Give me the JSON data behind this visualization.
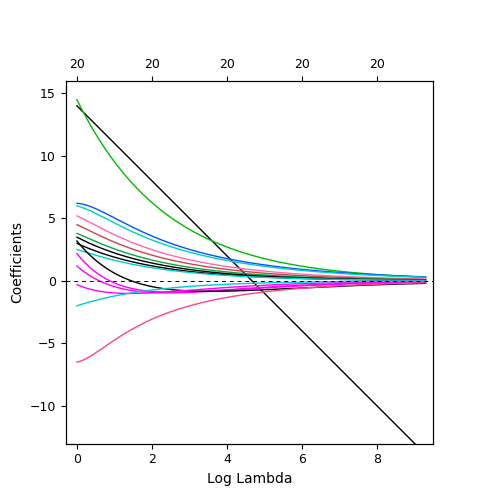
{
  "xlabel": "Log Lambda",
  "ylabel": "Coefficients",
  "xlim": [
    -0.3,
    9.5
  ],
  "ylim": [
    -13,
    16
  ],
  "yticks": [
    -10,
    -5,
    0,
    5,
    10,
    15
  ],
  "xticks": [
    0,
    2,
    4,
    6,
    8
  ],
  "top_xticklabels": [
    "20",
    "20",
    "20",
    "20",
    "20"
  ],
  "background_color": "#ffffff",
  "lines": [
    {
      "color": "#000000",
      "y0": 14.0,
      "shape": "linear",
      "params": [
        -3.0
      ]
    },
    {
      "color": "#00bb00",
      "y0": 14.5,
      "shape": "exp_decay",
      "params": [
        0.42
      ]
    },
    {
      "color": "#0055ff",
      "y0": 6.2,
      "shape": "bump_decay",
      "params": [
        1.8,
        0.9,
        0.32
      ]
    },
    {
      "color": "#00cccc",
      "y0": 6.0,
      "shape": "bump_decay",
      "params": [
        1.2,
        1.0,
        0.33
      ]
    },
    {
      "color": "#ff69b4",
      "y0": 5.2,
      "shape": "bump_decay",
      "params": [
        0.6,
        1.1,
        0.38
      ]
    },
    {
      "color": "#cc4444",
      "y0": 4.5,
      "shape": "bump_decay",
      "params": [
        0.4,
        1.2,
        0.4
      ]
    },
    {
      "color": "#00aa44",
      "y0": 3.8,
      "shape": "bump_decay",
      "params": [
        0.3,
        1.2,
        0.42
      ]
    },
    {
      "color": "#000000",
      "y0": 3.5,
      "shape": "exp_decay",
      "params": [
        0.45
      ]
    },
    {
      "color": "#000000",
      "y0": 3.0,
      "shape": "exp_decay",
      "params": [
        0.46
      ]
    },
    {
      "color": "#00cccc",
      "y0": 2.5,
      "shape": "bump_decay",
      "params": [
        0.2,
        1.3,
        0.44
      ]
    },
    {
      "color": "#ff00ff",
      "y0": 2.2,
      "shape": "neg_bump",
      "params": [
        -2.5,
        1.8,
        0.6
      ]
    },
    {
      "color": "#ff00ff",
      "y0": 1.2,
      "shape": "neg_bump",
      "params": [
        -2.0,
        2.2,
        0.55
      ]
    },
    {
      "color": "#000000",
      "y0": 3.2,
      "shape": "neg_bump",
      "params": [
        -2.2,
        2.5,
        0.48
      ]
    },
    {
      "color": "#ff00ff",
      "y0": -0.3,
      "shape": "neg_bump",
      "params": [
        -1.5,
        1.8,
        0.62
      ]
    },
    {
      "color": "#00cccc",
      "y0": -2.0,
      "shape": "neg_exp",
      "params": [
        0.5
      ]
    },
    {
      "color": "#ff4488",
      "y0": -6.5,
      "shape": "neg_bump_up",
      "params": [
        2.0,
        2.5,
        0.4
      ]
    }
  ]
}
